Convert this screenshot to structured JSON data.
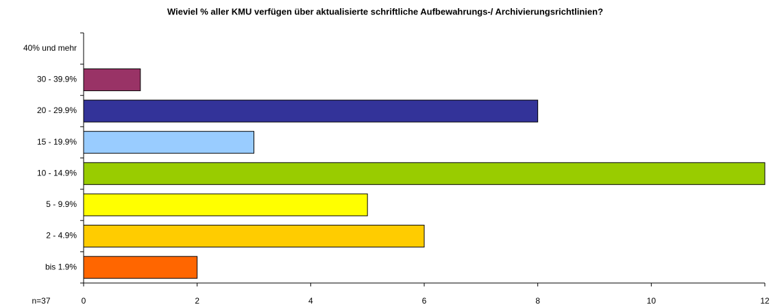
{
  "chart_data": {
    "type": "barh",
    "title": "Wieviel % aller KMU verfügen über aktualisierte schriftliche Aufbewahrungs-/ Archivierungsrichtlinien?",
    "annotation": "n=37",
    "categories": [
      "40% und mehr",
      "30 - 39.9%",
      "20 - 29.9%",
      "15 - 19.9%",
      "10 - 14.9%",
      "5 - 9.9%",
      "2 - 4.9%",
      "bis 1.9%"
    ],
    "values": [
      0,
      1,
      8,
      3,
      12,
      5,
      6,
      2
    ],
    "colors": [
      "#ff99cc",
      "#993366",
      "#333399",
      "#99ccff",
      "#99cc00",
      "#ffff00",
      "#ffcc00",
      "#ff6600"
    ],
    "xlim": [
      0,
      12
    ],
    "xticks": [
      0,
      2,
      4,
      6,
      8,
      10,
      12
    ],
    "grid": false
  }
}
